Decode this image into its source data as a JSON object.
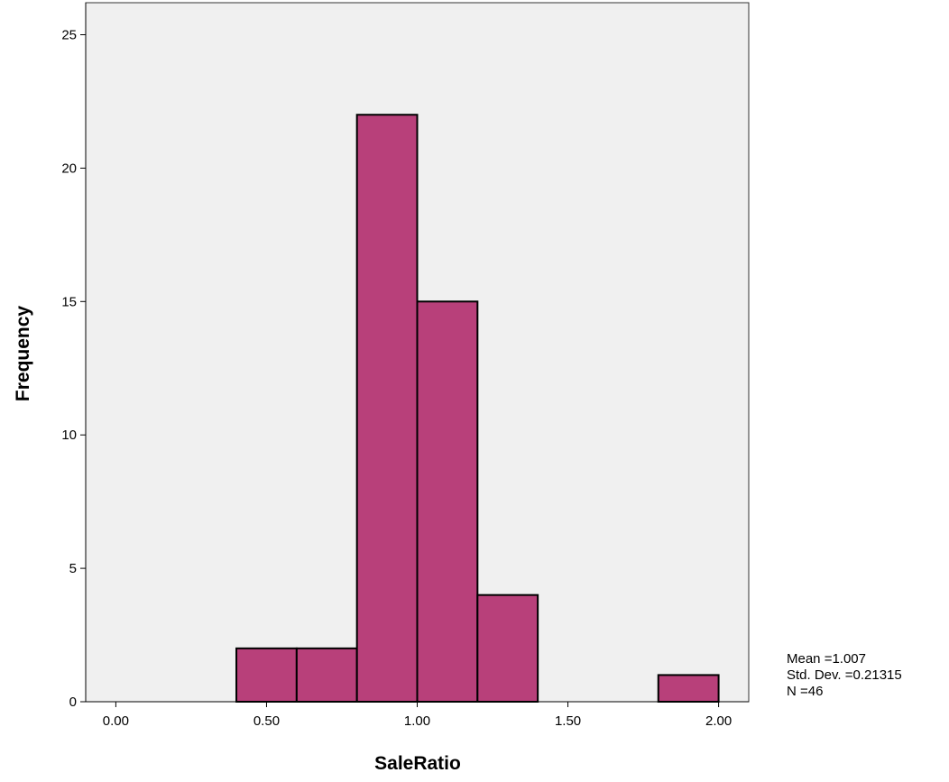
{
  "chart_data": {
    "type": "bar",
    "subtype": "histogram",
    "xlabel": "SaleRatio",
    "ylabel": "Frequency",
    "xlim": [
      -0.1,
      2.1
    ],
    "ylim": [
      0,
      26.2
    ],
    "x_ticks": [
      {
        "value": 0.0,
        "label": "0.00"
      },
      {
        "value": 0.5,
        "label": "0.50"
      },
      {
        "value": 1.0,
        "label": "1.00"
      },
      {
        "value": 1.5,
        "label": "1.50"
      },
      {
        "value": 2.0,
        "label": "2.00"
      }
    ],
    "y_ticks": [
      {
        "value": 0,
        "label": "0"
      },
      {
        "value": 5,
        "label": "5"
      },
      {
        "value": 10,
        "label": "10"
      },
      {
        "value": 15,
        "label": "15"
      },
      {
        "value": 20,
        "label": "20"
      },
      {
        "value": 25,
        "label": "25"
      }
    ],
    "bins": [
      {
        "start": 0.4,
        "end": 0.6,
        "frequency": 2
      },
      {
        "start": 0.6,
        "end": 0.8,
        "frequency": 2
      },
      {
        "start": 0.8,
        "end": 1.0,
        "frequency": 22
      },
      {
        "start": 1.0,
        "end": 1.2,
        "frequency": 15
      },
      {
        "start": 1.2,
        "end": 1.4,
        "frequency": 4
      },
      {
        "start": 1.4,
        "end": 1.6,
        "frequency": 0
      },
      {
        "start": 1.6,
        "end": 1.8,
        "frequency": 0
      },
      {
        "start": 1.8,
        "end": 2.0,
        "frequency": 1
      }
    ],
    "stats": [
      "Mean =1.007",
      "Std. Dev. =0.21315",
      "N =46"
    ],
    "bar_color": "#b8407a",
    "plot_background": "#f0f0f0",
    "grid": false,
    "legend": "none"
  }
}
